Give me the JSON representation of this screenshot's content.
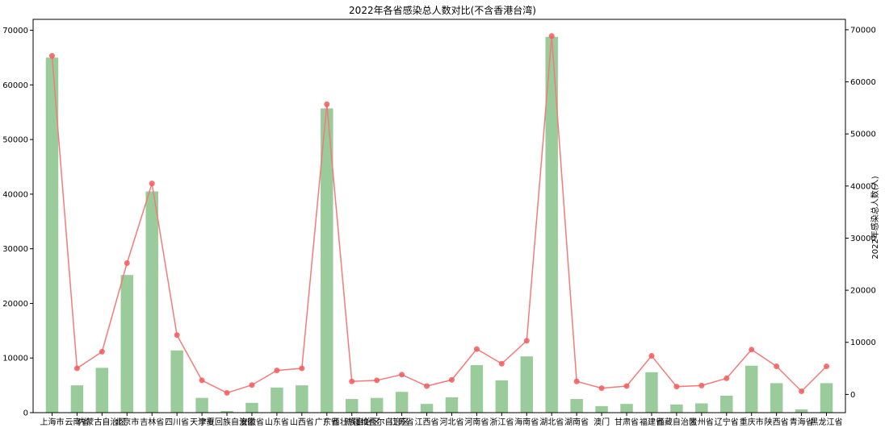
{
  "chart_data": {
    "type": "bar",
    "title": "2022年各省感染总人数对比(不含香港台湾)",
    "ylabel_right": "2022年感染总人数(人)",
    "ylim_left": [
      0,
      72000
    ],
    "ylim_right": [
      -3500,
      72000
    ],
    "yticks_left": [
      0,
      10000,
      20000,
      30000,
      40000,
      50000,
      60000,
      70000
    ],
    "yticks_right": [
      0,
      10000,
      20000,
      30000,
      40000,
      50000,
      60000,
      70000
    ],
    "grid": false,
    "colors": {
      "bar": "#9acb9a",
      "line": "#f57a7a",
      "marker": "#f55a5a"
    },
    "categories": [
      "上海市",
      "云南省",
      "内蒙古自治区",
      "北京市",
      "吉林省",
      "四川省",
      "天津市",
      "宁夏回族自治区",
      "安徽省",
      "山东省",
      "山西省",
      "广东省",
      "广西壮族自治区",
      "新疆维吾尔自治区",
      "江苏省",
      "江西省",
      "河北省",
      "河南省",
      "浙江省",
      "海南省",
      "湖北省",
      "湖南省",
      "澳门",
      "甘肃省",
      "福建省",
      "西藏自治区",
      "贵州省",
      "辽宁省",
      "重庆市",
      "陕西省",
      "青海省",
      "黑龙江省"
    ],
    "series": [
      {
        "values": [
          65000,
          5000,
          8200,
          25200,
          40500,
          11400,
          2700,
          300,
          1800,
          4600,
          5000,
          55700,
          2500,
          2700,
          3800,
          1600,
          2800,
          8700,
          5900,
          10300,
          68800,
          2500,
          1200,
          1600,
          7400,
          1500,
          1700,
          3100,
          8600,
          5400,
          600,
          5400
        ]
      },
      {
        "values": [
          65000,
          5000,
          8200,
          25200,
          40500,
          11400,
          2700,
          300,
          1800,
          4600,
          5000,
          55700,
          2500,
          2700,
          3800,
          1600,
          2800,
          8700,
          5900,
          10300,
          68800,
          2500,
          1200,
          1600,
          7400,
          1500,
          1700,
          3100,
          8600,
          5400,
          600,
          5400
        ]
      }
    ]
  }
}
